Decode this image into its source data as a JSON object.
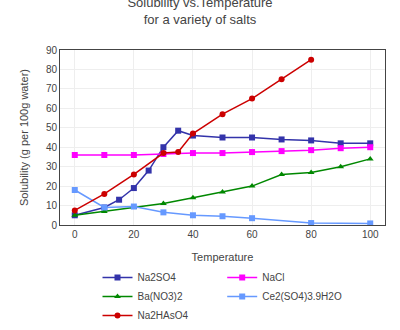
{
  "chart_data": {
    "type": "line",
    "title": "Solubility vs.Temperature\nfor a variety of salts",
    "xlabel": "Temperature",
    "ylabel": "Solubility (g per 100g water)",
    "xlim": [
      -5,
      105
    ],
    "ylim": [
      0,
      90
    ],
    "xticks": [
      0,
      20,
      40,
      60,
      80,
      100
    ],
    "yticks": [
      0,
      10,
      20,
      30,
      40,
      50,
      60,
      70,
      80,
      90
    ],
    "grid": true,
    "legend": "bottom",
    "series": [
      {
        "name": "Na2SO4",
        "color": "#3333aa",
        "marker": "square",
        "x": [
          0,
          10,
          15,
          20,
          25,
          30,
          35,
          40,
          50,
          60,
          70,
          80,
          90,
          100
        ],
        "values": [
          5,
          9,
          13,
          19,
          28,
          40,
          48.5,
          46,
          45,
          45,
          44,
          43.5,
          42,
          42
        ]
      },
      {
        "name": "NaCl",
        "color": "#ff00ff",
        "marker": "square",
        "x": [
          0,
          10,
          20,
          30,
          40,
          50,
          60,
          70,
          80,
          90,
          100
        ],
        "values": [
          36,
          36,
          36,
          36.5,
          37,
          37,
          37.5,
          38,
          38.5,
          39.5,
          40
        ]
      },
      {
        "name": "Ba(NO3)2",
        "color": "#008800",
        "marker": "triangle-up",
        "x": [
          0,
          10,
          20,
          30,
          40,
          50,
          60,
          70,
          80,
          90,
          100
        ],
        "values": [
          5,
          7,
          9,
          11,
          14,
          17,
          20,
          26,
          27,
          30,
          34
        ]
      },
      {
        "name": "Ce2(SO4)3.9H2O",
        "color": "#6699ff",
        "marker": "square",
        "x": [
          0,
          10,
          20,
          30,
          40,
          50,
          60,
          80,
          100
        ],
        "values": [
          18,
          9,
          9.5,
          6.5,
          5,
          4.5,
          3.5,
          1,
          0.8
        ]
      },
      {
        "name": "Na2HAsO4",
        "color": "#cc0000",
        "marker": "circle",
        "x": [
          0,
          10,
          20,
          30,
          35,
          40,
          50,
          60,
          70,
          80
        ],
        "values": [
          7.5,
          16,
          26,
          37,
          37.5,
          47,
          57,
          65,
          75,
          85
        ]
      }
    ]
  }
}
